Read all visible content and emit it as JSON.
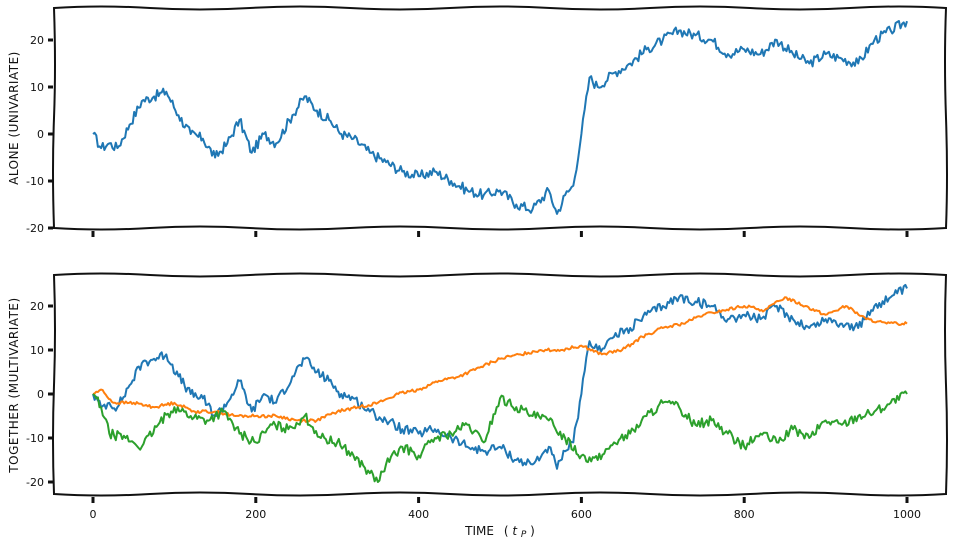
{
  "chart_data": [
    {
      "type": "line",
      "panel": "top",
      "title": "",
      "xlabel": "",
      "ylabel": "ALONE (UNIVARIATE)",
      "xlim": [
        0,
        1000
      ],
      "ylim": [
        -20,
        25
      ],
      "yticks": [
        20,
        10,
        0,
        -10,
        -20
      ],
      "ytick_labels": [
        "20",
        "10",
        "0",
        "-10",
        "-20"
      ],
      "xticks": [
        0,
        200,
        400,
        600,
        800,
        1000
      ],
      "xtick_labels_visible": false,
      "grid": false,
      "legend": null,
      "style": "xkcd",
      "series": [
        {
          "name": "univariate",
          "color": "#1f77b4",
          "x": [
            0,
            10,
            20,
            30,
            45,
            60,
            75,
            90,
            105,
            120,
            135,
            150,
            165,
            180,
            195,
            210,
            225,
            245,
            260,
            275,
            290,
            305,
            320,
            340,
            360,
            380,
            400,
            420,
            440,
            460,
            480,
            500,
            520,
            540,
            560,
            570,
            580,
            590,
            600,
            610,
            620,
            640,
            660,
            680,
            700,
            720,
            740,
            760,
            780,
            800,
            820,
            840,
            860,
            880,
            900,
            920,
            940,
            960,
            980,
            1000
          ],
          "values": [
            0,
            -3,
            -2,
            -3,
            2,
            7,
            8,
            9,
            4,
            0,
            -1,
            -5,
            -2,
            3,
            -4,
            0,
            -2,
            4,
            8,
            5,
            3,
            0,
            -1,
            -4,
            -6,
            -8,
            -9,
            -8,
            -10,
            -12,
            -13,
            -12,
            -15,
            -16,
            -12,
            -17,
            -13,
            -11,
            0,
            12,
            10,
            13,
            15,
            18,
            20,
            22,
            21,
            20,
            17,
            18,
            17,
            20,
            17,
            15,
            17,
            16,
            15,
            20,
            22,
            24
          ]
        }
      ]
    },
    {
      "type": "line",
      "panel": "bottom",
      "title": "",
      "xlabel": "TIME (tP)",
      "ylabel": "TOGETHER (MULTIVARIATE)",
      "xlim": [
        0,
        1000
      ],
      "ylim": [
        -22,
        27
      ],
      "yticks": [
        20,
        10,
        0,
        -10,
        -20
      ],
      "ytick_labels": [
        "20",
        "10",
        "0",
        "-10",
        "-20"
      ],
      "xticks": [
        0,
        200,
        400,
        600,
        800,
        1000
      ],
      "xtick_labels": [
        "0",
        "200",
        "400",
        "600",
        "800",
        "1000"
      ],
      "grid": false,
      "legend": null,
      "style": "xkcd",
      "series": [
        {
          "name": "blue",
          "color": "#1f77b4",
          "x": [
            0,
            10,
            20,
            30,
            45,
            60,
            75,
            90,
            105,
            120,
            135,
            150,
            165,
            180,
            195,
            210,
            225,
            245,
            260,
            275,
            290,
            305,
            320,
            340,
            360,
            380,
            400,
            420,
            440,
            460,
            480,
            500,
            520,
            540,
            560,
            570,
            580,
            590,
            600,
            610,
            620,
            640,
            660,
            680,
            700,
            720,
            740,
            760,
            780,
            800,
            820,
            840,
            860,
            880,
            900,
            920,
            940,
            960,
            980,
            1000
          ],
          "values": [
            0,
            -3,
            -2,
            -3,
            2,
            7,
            8,
            9,
            4,
            0,
            -1,
            -5,
            -2,
            3,
            -4,
            0,
            -2,
            4,
            8,
            5,
            3,
            0,
            -1,
            -4,
            -6,
            -8,
            -9,
            -8,
            -10,
            -12,
            -13,
            -12,
            -15,
            -16,
            -12,
            -17,
            -13,
            -11,
            0,
            12,
            10,
            13,
            15,
            18,
            20,
            22,
            21,
            20,
            17,
            18,
            17,
            20,
            17,
            15,
            17,
            16,
            15,
            20,
            22,
            24
          ]
        },
        {
          "name": "orange",
          "color": "#ff7f0e",
          "x": [
            0,
            10,
            25,
            50,
            75,
            100,
            125,
            150,
            175,
            200,
            225,
            250,
            275,
            300,
            325,
            350,
            375,
            400,
            425,
            450,
            475,
            500,
            525,
            550,
            575,
            600,
            625,
            650,
            675,
            700,
            725,
            750,
            775,
            800,
            825,
            850,
            875,
            900,
            925,
            950,
            975,
            1000
          ],
          "values": [
            0,
            1,
            -2,
            -2,
            -3,
            -2,
            -4,
            -4,
            -5,
            -5,
            -5,
            -6,
            -6,
            -4,
            -3,
            -2,
            0,
            1,
            3,
            4,
            6,
            8,
            9,
            10,
            10,
            11,
            9,
            10,
            13,
            15,
            16,
            18,
            19,
            20,
            19,
            22,
            20,
            18,
            20,
            17,
            16,
            16
          ]
        },
        {
          "name": "green",
          "color": "#2ca02c",
          "x": [
            0,
            10,
            20,
            40,
            60,
            80,
            100,
            120,
            140,
            160,
            180,
            200,
            220,
            240,
            260,
            280,
            300,
            320,
            340,
            350,
            360,
            380,
            400,
            420,
            440,
            460,
            480,
            500,
            520,
            540,
            560,
            580,
            600,
            620,
            640,
            660,
            680,
            700,
            720,
            740,
            760,
            780,
            800,
            820,
            840,
            860,
            880,
            900,
            920,
            940,
            960,
            980,
            1000
          ],
          "values": [
            0,
            -3,
            -9,
            -10,
            -12,
            -7,
            -3,
            -5,
            -6,
            -4,
            -9,
            -11,
            -7,
            -8,
            -5,
            -10,
            -11,
            -14,
            -18,
            -20,
            -16,
            -12,
            -14,
            -10,
            -9,
            -7,
            -11,
            -1,
            -3,
            -5,
            -6,
            -10,
            -14,
            -15,
            -11,
            -9,
            -5,
            -2,
            -3,
            -7,
            -6,
            -9,
            -12,
            -9,
            -11,
            -8,
            -10,
            -6,
            -7,
            -5,
            -4,
            -2,
            0
          ]
        }
      ]
    }
  ],
  "axes": {
    "top": {
      "ylabel": "ALONE (UNIVARIATE)",
      "ytick_labels": [
        "20",
        "10",
        "0",
        "-10",
        "-20"
      ]
    },
    "bottom": {
      "ylabel": "TOGETHER (MULTIVARIATE)",
      "xlabel_main": "TIME",
      "xlabel_paren_open": "(",
      "xlabel_t": "t",
      "xlabel_sub": "P",
      "xlabel_paren_close": ")",
      "ytick_labels": [
        "20",
        "10",
        "0",
        "-10",
        "-20"
      ],
      "xtick_labels": [
        "0",
        "200",
        "400",
        "600",
        "800",
        "1000"
      ]
    }
  }
}
